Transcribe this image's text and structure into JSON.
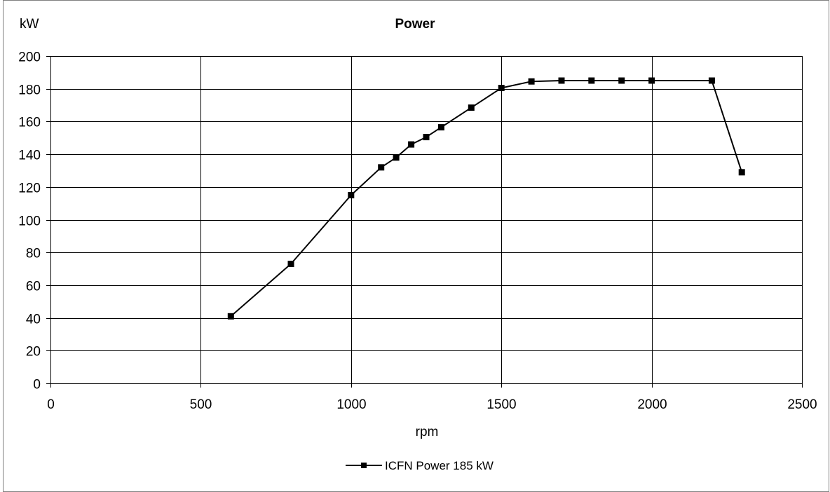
{
  "chart_data": {
    "type": "line",
    "title": "Power",
    "xlabel": "rpm",
    "ylabel": "kW",
    "xlim": [
      0,
      2500
    ],
    "ylim": [
      0,
      200
    ],
    "x_ticks": [
      0,
      500,
      1000,
      1500,
      2000,
      2500
    ],
    "y_ticks": [
      0,
      20,
      40,
      60,
      80,
      100,
      120,
      140,
      160,
      180,
      200
    ],
    "grid": true,
    "legend_position": "bottom",
    "series": [
      {
        "name": "ICFN Power 185 kW",
        "color": "#000000",
        "marker": "square",
        "points": [
          [
            600,
            41
          ],
          [
            800,
            73
          ],
          [
            1000,
            115
          ],
          [
            1100,
            132
          ],
          [
            1150,
            138
          ],
          [
            1200,
            146
          ],
          [
            1250,
            150.5
          ],
          [
            1300,
            156.5
          ],
          [
            1400,
            168.5
          ],
          [
            1500,
            180.5
          ],
          [
            1600,
            184.5
          ],
          [
            1700,
            185
          ],
          [
            1800,
            185
          ],
          [
            1900,
            185
          ],
          [
            2000,
            185
          ],
          [
            2200,
            185
          ],
          [
            2300,
            129
          ]
        ]
      }
    ]
  }
}
